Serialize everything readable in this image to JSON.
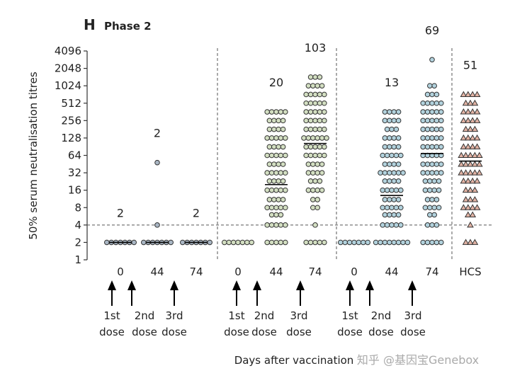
{
  "chart_data": {
    "type": "scatter",
    "panel": "H",
    "title": "Phase 2",
    "ylabel": "50% serum neutralisation titres",
    "xlabel": "Days after vaccination",
    "watermark": "知乎 @基因宝Genebox",
    "ylog": true,
    "base": 2,
    "ylim": [
      1,
      4096
    ],
    "yticks": [
      1,
      2,
      4,
      8,
      16,
      32,
      64,
      128,
      256,
      512,
      1024,
      2048,
      4096
    ],
    "threshold": 4,
    "categories": [
      "0",
      "44",
      "74",
      "0",
      "44",
      "74",
      "0",
      "44",
      "74",
      "HCS"
    ],
    "gmt": [
      2,
      2,
      2,
      null,
      20,
      103,
      null,
      13,
      69,
      51
    ],
    "doses": [
      [
        "1st",
        "dose"
      ],
      [
        "2nd",
        "dose"
      ],
      [
        "3rd",
        "dose"
      ]
    ],
    "series": [
      {
        "color": "#a9b6c4",
        "marker": "circle",
        "values": [
          2,
          2,
          2,
          2,
          2,
          2,
          2
        ]
      },
      {
        "color": "#a9b6c4",
        "marker": "circle",
        "values": [
          2,
          2,
          2,
          2,
          2,
          2,
          2,
          4,
          48
        ]
      },
      {
        "color": "#a9b6c4",
        "marker": "circle",
        "values": [
          2,
          2,
          2,
          2,
          2,
          2,
          2
        ]
      },
      {
        "color": "#d3dfc2",
        "marker": "circle",
        "values": [
          2,
          2,
          2,
          2,
          2,
          2,
          2
        ]
      },
      {
        "color": "#d3dfc2",
        "marker": "circle",
        "values": [
          362,
          362,
          362,
          362,
          362,
          256,
          256,
          256,
          256,
          181,
          181,
          181,
          181,
          128,
          128,
          128,
          128,
          128,
          90,
          90,
          90,
          90,
          64,
          64,
          64,
          64,
          64,
          45,
          45,
          45,
          45,
          32,
          32,
          32,
          32,
          32,
          23,
          23,
          23,
          23,
          16,
          16,
          16,
          16,
          16,
          11,
          11,
          11,
          11,
          8,
          8,
          8,
          8,
          8,
          6,
          6,
          6,
          4,
          4,
          4,
          4,
          4,
          2,
          2,
          2,
          2,
          2
        ]
      },
      {
        "color": "#d3dfc2",
        "marker": "circle",
        "values": [
          1448,
          1448,
          1448,
          1024,
          1024,
          1024,
          1024,
          724,
          724,
          724,
          724,
          724,
          512,
          512,
          512,
          512,
          512,
          362,
          362,
          362,
          362,
          362,
          256,
          256,
          256,
          256,
          256,
          181,
          181,
          181,
          181,
          181,
          128,
          128,
          128,
          128,
          128,
          128,
          90,
          90,
          90,
          90,
          90,
          64,
          64,
          64,
          64,
          64,
          45,
          45,
          45,
          45,
          32,
          32,
          32,
          32,
          23,
          23,
          23,
          16,
          16,
          16,
          16,
          11,
          11,
          8,
          8,
          4,
          2,
          2,
          2,
          2,
          2
        ]
      },
      {
        "color": "#b2d2dd",
        "marker": "circle",
        "values": [
          2,
          2,
          2,
          2,
          2,
          2,
          2
        ]
      },
      {
        "color": "#b2d2dd",
        "marker": "circle",
        "values": [
          362,
          362,
          362,
          362,
          256,
          256,
          256,
          256,
          181,
          181,
          181,
          128,
          128,
          128,
          128,
          90,
          90,
          90,
          90,
          64,
          64,
          64,
          64,
          64,
          45,
          45,
          45,
          45,
          32,
          32,
          32,
          32,
          32,
          32,
          23,
          23,
          23,
          23,
          16,
          16,
          16,
          16,
          16,
          11,
          11,
          11,
          11,
          8,
          8,
          8,
          8,
          8,
          6,
          6,
          6,
          6,
          4,
          4,
          4,
          4,
          4,
          2,
          2,
          2,
          2,
          2,
          2,
          2,
          2
        ]
      },
      {
        "color": "#b2d2dd",
        "marker": "circle",
        "values": [
          2896,
          1024,
          1024,
          724,
          724,
          724,
          512,
          512,
          512,
          512,
          512,
          362,
          362,
          362,
          362,
          362,
          256,
          256,
          256,
          256,
          256,
          181,
          181,
          181,
          181,
          181,
          128,
          128,
          128,
          128,
          128,
          90,
          90,
          90,
          90,
          90,
          64,
          64,
          64,
          64,
          64,
          45,
          45,
          45,
          45,
          45,
          32,
          32,
          32,
          32,
          32,
          23,
          23,
          23,
          23,
          16,
          16,
          16,
          16,
          11,
          11,
          11,
          8,
          8,
          8,
          8,
          6,
          6,
          4,
          4,
          4,
          2,
          2,
          2,
          2,
          2
        ]
      },
      {
        "color": "#e2b3a4",
        "marker": "triangle",
        "values": [
          724,
          724,
          724,
          724,
          512,
          512,
          512,
          362,
          362,
          362,
          362,
          256,
          256,
          256,
          256,
          181,
          181,
          181,
          128,
          128,
          128,
          128,
          90,
          90,
          90,
          90,
          64,
          64,
          64,
          64,
          64,
          45,
          45,
          45,
          45,
          45,
          32,
          32,
          32,
          32,
          32,
          23,
          23,
          23,
          23,
          16,
          16,
          16,
          11,
          11,
          11,
          8,
          8,
          8,
          8,
          6,
          6,
          4,
          2,
          2,
          2
        ]
      }
    ]
  }
}
